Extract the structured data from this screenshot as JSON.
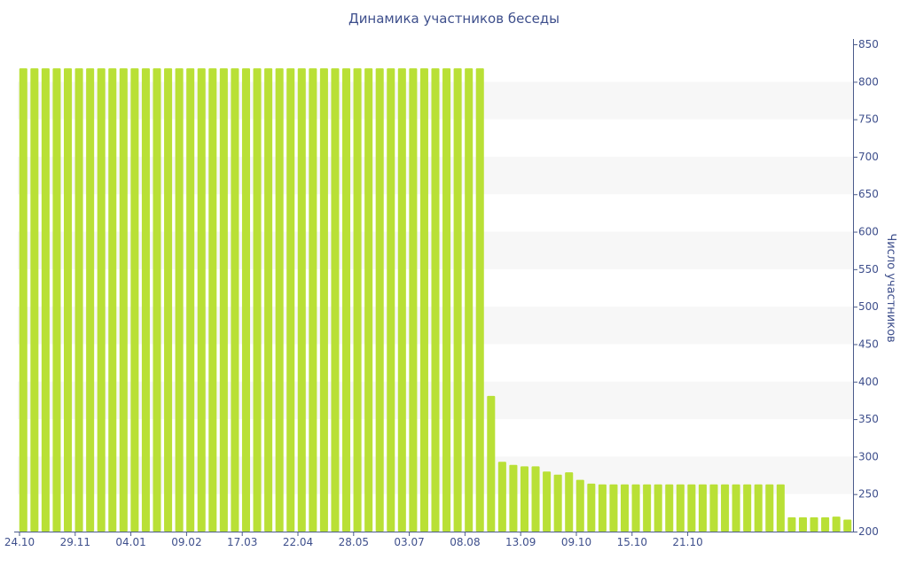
{
  "chart_data": {
    "type": "bar",
    "title": "Динамика участников беседы",
    "xlabel": "",
    "ylabel": "Число участников",
    "ylim": [
      200,
      850
    ],
    "y_axis_position": "right",
    "y_ticks": [
      200,
      250,
      300,
      350,
      400,
      450,
      500,
      550,
      600,
      650,
      700,
      750,
      800,
      850
    ],
    "x_tick_labels": [
      "24.10",
      "29.11",
      "04.01",
      "09.02",
      "17.03",
      "22.04",
      "28.05",
      "03.07",
      "08.08",
      "13.09",
      "09.10",
      "15.10",
      "21.10"
    ],
    "x_tick_every": 5,
    "grid": "alternating horizontal bands",
    "bar_color": "#b9e036",
    "band_color": "#f7f7f7",
    "text_color": "#3e4f8c",
    "values": [
      818,
      818,
      818,
      818,
      818,
      818,
      818,
      818,
      818,
      818,
      818,
      818,
      818,
      818,
      818,
      818,
      818,
      818,
      818,
      818,
      818,
      818,
      818,
      818,
      818,
      818,
      818,
      818,
      818,
      818,
      818,
      818,
      818,
      818,
      818,
      818,
      818,
      818,
      818,
      818,
      818,
      818,
      381,
      293,
      289,
      287,
      287,
      280,
      276,
      279,
      269,
      264,
      263,
      263,
      263,
      263,
      263,
      263,
      263,
      263,
      263,
      263,
      263,
      263,
      263,
      263,
      263,
      263,
      263,
      219,
      219,
      219,
      219,
      220,
      216
    ]
  }
}
